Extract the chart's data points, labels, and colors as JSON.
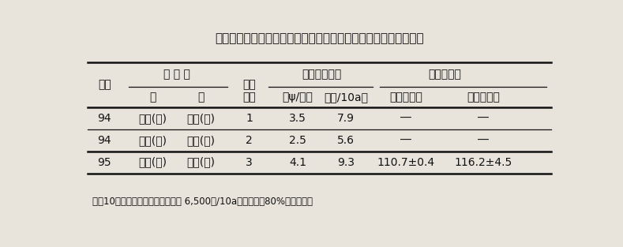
{
  "title": "表１．開発したキャベツ収穫機による作業能率と作業者の心拍数",
  "footnote": "＊）10アール当たりの作業時間は 6,500個/10a、作業効率80%として算出",
  "rows": [
    [
      "94",
      "農家(女)",
      "農家(男)",
      "1",
      "3.5",
      "7.9",
      "―",
      "―"
    ],
    [
      "94",
      "農家(女)",
      "農家(男)",
      "2",
      "2.5",
      "5.6",
      "―",
      "―"
    ],
    [
      "95",
      "農家(男)",
      "専技(男)",
      "3",
      "4.1",
      "9.3",
      "110.7±0.4",
      "116.2±4.5"
    ]
  ],
  "bg_color": "#e8e4dc",
  "text_color": "#111111",
  "title_fontsize": 11,
  "header_fontsize": 10,
  "data_fontsize": 10,
  "footnote_fontsize": 8.5
}
